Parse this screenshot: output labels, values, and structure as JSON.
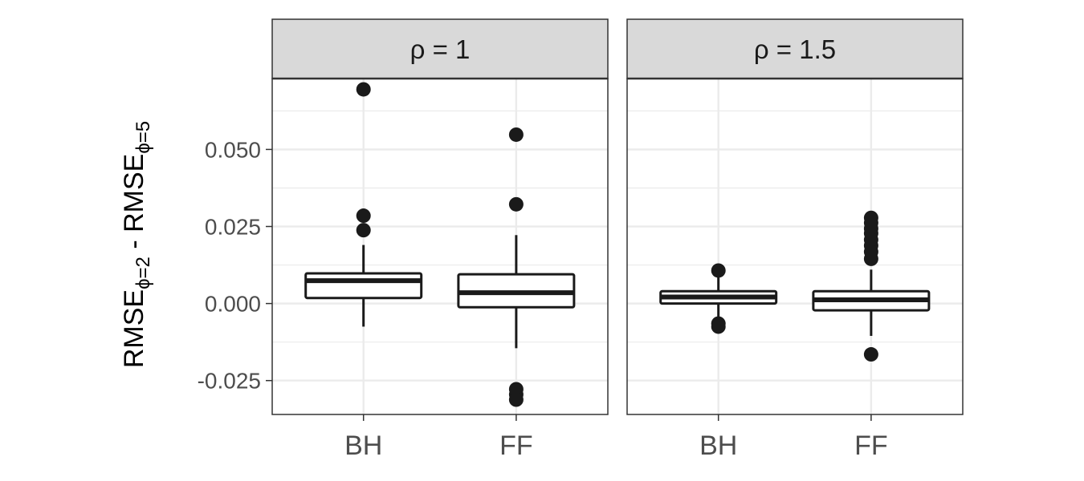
{
  "chart_data": {
    "type": "boxplot",
    "ylabel": {
      "main1": "RMSE",
      "sub1": "ϕ=2",
      "sep": " - ",
      "main2": "RMSE",
      "sub2": "ϕ=5"
    },
    "categories": [
      "BH",
      "FF"
    ],
    "ylim": [
      -0.036,
      0.073
    ],
    "yticks": [
      -0.025,
      0.0,
      0.025,
      0.05
    ],
    "ytick_labels": [
      "-0.025",
      "0.000",
      "0.025",
      "0.050"
    ],
    "grid": true,
    "colors": {
      "strip_bg": "#d9d9d9",
      "grid": "#ebebeb",
      "box_line": "#1a1a1a",
      "border": "#333333"
    },
    "panels": [
      {
        "label": "ρ = 1",
        "boxes": [
          {
            "category": "BH",
            "q1": 0.0018,
            "median": 0.0074,
            "q3": 0.0098,
            "whisker_low": -0.0075,
            "whisker_high": 0.019,
            "outliers": [
              0.0695,
              0.0285,
              0.0238
            ]
          },
          {
            "category": "FF",
            "q1": -0.0012,
            "median": 0.0035,
            "q3": 0.0095,
            "whisker_low": -0.0145,
            "whisker_high": 0.0222,
            "outliers": [
              0.0548,
              0.0322,
              -0.0278,
              -0.0295,
              -0.0312
            ]
          }
        ]
      },
      {
        "label": "ρ = 1.5",
        "boxes": [
          {
            "category": "BH",
            "q1": 0.0,
            "median": 0.0021,
            "q3": 0.004,
            "whisker_low": -0.005,
            "whisker_high": 0.009,
            "outliers": [
              0.0107,
              -0.0065,
              -0.0075
            ]
          },
          {
            "category": "FF",
            "q1": -0.0022,
            "median": 0.0012,
            "q3": 0.004,
            "whisker_low": -0.0105,
            "whisker_high": 0.011,
            "outliers": [
              0.0278,
              0.0262,
              0.0243,
              0.0228,
              0.0207,
              0.0188,
              0.0168,
              0.0145,
              -0.0165
            ]
          }
        ]
      }
    ]
  }
}
